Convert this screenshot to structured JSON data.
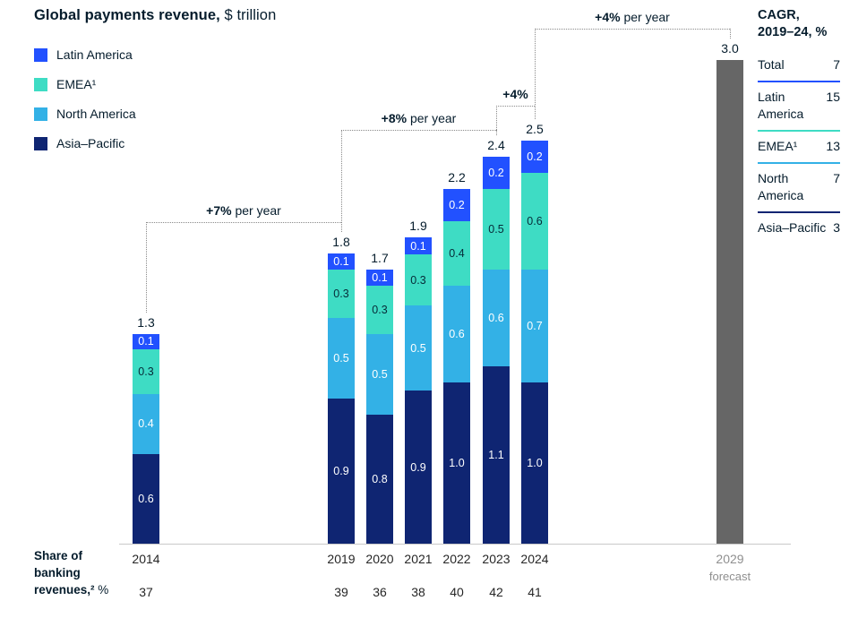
{
  "title": {
    "bold": "Global payments revenue,",
    "regular": " $ trillion"
  },
  "colors": {
    "latin_america": "#2251ff",
    "emea": "#3edcc4",
    "north_america": "#33b1e6",
    "asia_pacific": "#0f2572",
    "forecast_bar": "#666666",
    "annotation_line": "#8a8a8a",
    "axis_line": "#c9c9c9",
    "text_dark": "#051c2c",
    "muted_text": "#8f8f8f"
  },
  "chart_data": {
    "type": "bar",
    "stacked": true,
    "title": "Global payments revenue, $ trillion",
    "unit": "$ trillion",
    "categories": [
      "2014",
      "2019",
      "2020",
      "2021",
      "2022",
      "2023",
      "2024",
      "2029"
    ],
    "forecast_category": "2029",
    "forecast_note": "forecast",
    "series": [
      {
        "name": "Asia–Pacific",
        "color_key": "asia_pacific",
        "label_color": "#ffffff",
        "values": [
          0.6,
          0.9,
          0.8,
          0.9,
          1.0,
          1.1,
          1.0,
          null
        ]
      },
      {
        "name": "North America",
        "color_key": "north_america",
        "label_color": "#ffffff",
        "values": [
          0.4,
          0.5,
          0.5,
          0.5,
          0.6,
          0.6,
          0.7,
          null
        ]
      },
      {
        "name": "EMEA¹",
        "color_key": "emea",
        "label_color": "#062b38",
        "values": [
          0.3,
          0.3,
          0.3,
          0.3,
          0.4,
          0.5,
          0.6,
          null
        ]
      },
      {
        "name": "Latin America",
        "color_key": "latin_america",
        "label_color": "#ffffff",
        "values": [
          0.1,
          0.1,
          0.1,
          0.1,
          0.2,
          0.2,
          0.2,
          null
        ]
      }
    ],
    "totals": [
      1.3,
      1.8,
      1.7,
      1.9,
      2.2,
      2.4,
      2.5,
      3.0
    ],
    "share_of_banking_revenues_pct": [
      37,
      39,
      36,
      38,
      40,
      42,
      41,
      null
    ],
    "annotations": [
      {
        "bold": "+7%",
        "rest": " per year",
        "from": "2014",
        "to": "2019"
      },
      {
        "bold": "+8%",
        "rest": " per year",
        "from": "2019",
        "to": "2023"
      },
      {
        "bold": "+4%",
        "rest": "",
        "from": "2023",
        "to": "2024"
      },
      {
        "bold": "+4%",
        "rest": " per year",
        "from": "2024",
        "to": "2029"
      }
    ],
    "ylim": [
      0,
      3.0
    ],
    "legend_position": "top-left",
    "grid": false
  },
  "cagr_panel": {
    "heading_line1": "CAGR,",
    "heading_line2": "2019–24, %",
    "rows": [
      {
        "label": "Total",
        "value": "7",
        "color_key": null
      },
      {
        "label": "Latin America",
        "value": "15",
        "color_key": "latin_america"
      },
      {
        "label": "EMEA¹",
        "value": "13",
        "color_key": "emea"
      },
      {
        "label": "North America",
        "value": "7",
        "color_key": "north_america"
      },
      {
        "label": "Asia–Pacific",
        "value": "3",
        "color_key": "asia_pacific"
      }
    ]
  },
  "footer": {
    "share_label": "Share of banking revenues,²",
    "share_suffix": " %"
  }
}
